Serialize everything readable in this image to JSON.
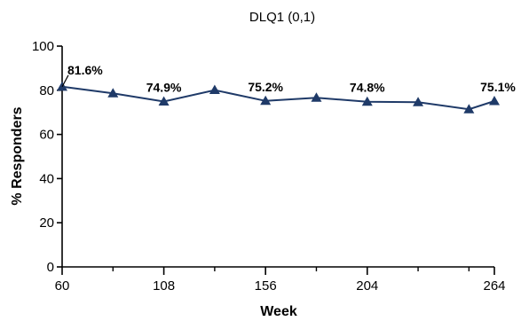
{
  "chart_data": {
    "type": "line",
    "title": "DLQ1 (0,1)",
    "xlabel": "Week",
    "ylabel": "% Responders",
    "xlim": [
      60,
      264
    ],
    "ylim": [
      0,
      100
    ],
    "x_ticks": [
      60,
      108,
      156,
      204,
      264
    ],
    "x_minor_ticks": [
      84,
      132,
      180,
      228,
      252
    ],
    "y_ticks": [
      0,
      20,
      40,
      60,
      80,
      100
    ],
    "grid": false,
    "legend": "none",
    "series": [
      {
        "color": "#1f3a68",
        "marker": "triangle",
        "x": [
          60,
          84,
          108,
          132,
          156,
          180,
          204,
          228,
          252,
          264
        ],
        "y": [
          81.6,
          78.6,
          74.9,
          80.1,
          75.2,
          76.6,
          74.8,
          74.6,
          71.4,
          75.1
        ]
      }
    ],
    "annotations": [
      {
        "x": 60,
        "text": "81.6%"
      },
      {
        "x": 108,
        "text": "74.9%"
      },
      {
        "x": 156,
        "text": "75.2%"
      },
      {
        "x": 204,
        "text": "74.8%"
      },
      {
        "x": 264,
        "text": "75.1%"
      }
    ]
  }
}
